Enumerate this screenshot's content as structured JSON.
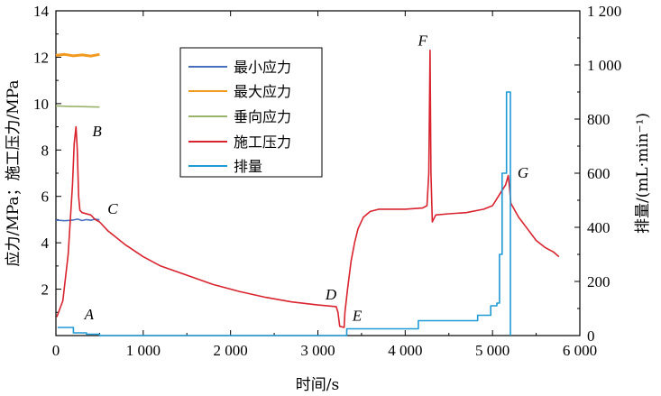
{
  "chart_data": {
    "type": "line",
    "x_axis": {
      "label": "时间/s",
      "range": [
        0,
        6000
      ],
      "ticks": [
        0,
        1000,
        2000,
        3000,
        4000,
        5000,
        6000
      ],
      "tick_labels": [
        "0",
        "1 000",
        "2 000",
        "3 000",
        "4 000",
        "5 000",
        "6 000"
      ]
    },
    "y_axis_left": {
      "label": "应力/MPa；施工压力/MPa",
      "range": [
        0,
        14
      ],
      "ticks": [
        2,
        4,
        6,
        8,
        10,
        12,
        14
      ],
      "tick_labels": [
        "2",
        "4",
        "6",
        "8",
        "10",
        "12",
        "14"
      ]
    },
    "y_axis_right": {
      "label": "排量/(mL·min⁻¹)",
      "range": [
        0,
        1200
      ],
      "ticks": [
        0,
        200,
        400,
        600,
        800,
        1000,
        1200
      ],
      "tick_labels": [
        "0",
        "200",
        "400",
        "600",
        "800",
        "1 000",
        "1 200"
      ]
    },
    "legend": {
      "placement": "top-center",
      "entries": [
        {
          "name": "最小应力",
          "color": "#4A6FBF"
        },
        {
          "name": "最大应力",
          "color": "#F29A1F"
        },
        {
          "name": "垂向应力",
          "color": "#9AB36A"
        },
        {
          "name": "施工压力",
          "color": "#D9232E"
        },
        {
          "name": "排量",
          "color": "#1E9AD6"
        }
      ]
    },
    "series": [
      {
        "name": "最小应力",
        "axis": "left",
        "color": "#4A6FBF",
        "points": [
          [
            0,
            4.98
          ],
          [
            100,
            4.95
          ],
          [
            200,
            4.98
          ],
          [
            250,
            5.02
          ],
          [
            300,
            4.96
          ],
          [
            350,
            5.0
          ],
          [
            400,
            4.97
          ],
          [
            450,
            5.02
          ],
          [
            500,
            4.99
          ]
        ]
      },
      {
        "name": "最大应力",
        "axis": "left",
        "color": "#F29A1F",
        "points": [
          [
            0,
            12.08
          ],
          [
            100,
            12.12
          ],
          [
            200,
            12.06
          ],
          [
            300,
            12.1
          ],
          [
            400,
            12.05
          ],
          [
            500,
            12.12
          ]
        ]
      },
      {
        "name": "垂向应力",
        "axis": "left",
        "color": "#9AB36A",
        "points": [
          [
            0,
            9.9
          ],
          [
            150,
            9.88
          ],
          [
            300,
            9.87
          ],
          [
            500,
            9.85
          ]
        ]
      },
      {
        "name": "施工压力",
        "axis": "left",
        "color": "#D9232E",
        "points": [
          [
            10,
            0.8
          ],
          [
            80,
            1.5
          ],
          [
            140,
            3.5
          ],
          [
            190,
            6.5
          ],
          [
            210,
            8.3
          ],
          [
            230,
            9.0
          ],
          [
            245,
            8.0
          ],
          [
            260,
            6.0
          ],
          [
            275,
            5.4
          ],
          [
            300,
            5.3
          ],
          [
            400,
            5.2
          ],
          [
            450,
            5.0
          ],
          [
            500,
            4.9
          ],
          [
            600,
            4.5
          ],
          [
            800,
            3.9
          ],
          [
            1000,
            3.4
          ],
          [
            1200,
            3.0
          ],
          [
            1500,
            2.6
          ],
          [
            1800,
            2.2
          ],
          [
            2100,
            1.9
          ],
          [
            2400,
            1.65
          ],
          [
            2700,
            1.45
          ],
          [
            3000,
            1.32
          ],
          [
            3210,
            1.25
          ],
          [
            3230,
            1.0
          ],
          [
            3250,
            0.4
          ],
          [
            3300,
            0.35
          ],
          [
            3310,
            1.0
          ],
          [
            3340,
            2.0
          ],
          [
            3380,
            3.2
          ],
          [
            3420,
            4.0
          ],
          [
            3460,
            4.6
          ],
          [
            3520,
            5.1
          ],
          [
            3600,
            5.35
          ],
          [
            3700,
            5.45
          ],
          [
            4000,
            5.45
          ],
          [
            4200,
            5.5
          ],
          [
            4250,
            5.6
          ],
          [
            4270,
            7.0
          ],
          [
            4285,
            12.3
          ],
          [
            4295,
            7.0
          ],
          [
            4310,
            4.9
          ],
          [
            4350,
            5.2
          ],
          [
            4500,
            5.25
          ],
          [
            4700,
            5.3
          ],
          [
            4900,
            5.45
          ],
          [
            5000,
            5.6
          ],
          [
            5050,
            5.9
          ],
          [
            5100,
            6.2
          ],
          [
            5150,
            6.5
          ],
          [
            5180,
            6.9
          ],
          [
            5195,
            6.4
          ],
          [
            5210,
            5.7
          ],
          [
            5300,
            5.1
          ],
          [
            5400,
            4.6
          ],
          [
            5500,
            4.1
          ],
          [
            5600,
            3.8
          ],
          [
            5700,
            3.6
          ],
          [
            5760,
            3.4
          ]
        ]
      },
      {
        "name": "排量",
        "axis": "right",
        "color": "#1E9AD6",
        "points": [
          [
            20,
            30
          ],
          [
            200,
            30
          ],
          [
            200,
            10
          ],
          [
            350,
            10
          ],
          [
            350,
            5
          ],
          [
            500,
            5
          ],
          [
            500,
            0
          ],
          [
            3330,
            0
          ],
          [
            3330,
            25
          ],
          [
            4150,
            25
          ],
          [
            4150,
            55
          ],
          [
            4830,
            55
          ],
          [
            4830,
            75
          ],
          [
            4980,
            75
          ],
          [
            4980,
            110
          ],
          [
            5050,
            110
          ],
          [
            5050,
            120
          ],
          [
            5080,
            120
          ],
          [
            5080,
            300
          ],
          [
            5110,
            300
          ],
          [
            5110,
            600
          ],
          [
            5160,
            600
          ],
          [
            5160,
            900
          ],
          [
            5205,
            900
          ],
          [
            5205,
            0
          ]
        ]
      }
    ],
    "annotations": [
      {
        "label": "A",
        "x": 380,
        "y": 0.7
      },
      {
        "label": "B",
        "x": 470,
        "y": 8.6
      },
      {
        "label": "C",
        "x": 650,
        "y": 5.25
      },
      {
        "label": "D",
        "x": 3150,
        "y": 1.55
      },
      {
        "label": "E",
        "x": 3450,
        "y": 0.65
      },
      {
        "label": "F",
        "x": 4200,
        "y": 12.5
      },
      {
        "label": "G",
        "x": 5350,
        "y": 6.8
      }
    ]
  }
}
